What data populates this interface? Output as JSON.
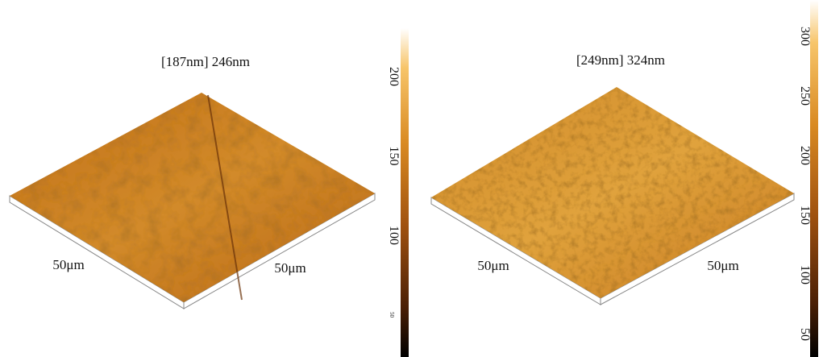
{
  "panels": [
    {
      "title": "[187nm] 246nm",
      "axis_labels": [
        "50μm",
        "50μm"
      ],
      "colorbar": {
        "ticks": [
          200,
          150,
          100,
          50
        ]
      }
    },
    {
      "title": "[249nm] 324nm",
      "axis_labels": [
        "50μm",
        "50μm"
      ],
      "colorbar": {
        "ticks": [
          300,
          250,
          200,
          150,
          100,
          50
        ]
      }
    }
  ]
}
